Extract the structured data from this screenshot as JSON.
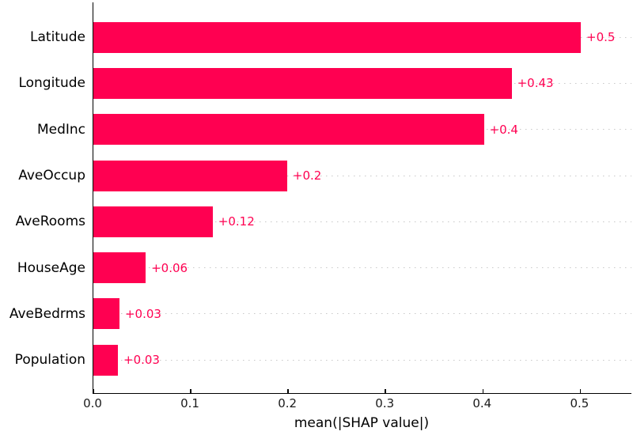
{
  "chart_data": {
    "type": "bar",
    "orientation": "horizontal",
    "title": "",
    "xlabel": "mean(|SHAP value|)",
    "ylabel": "",
    "categories": [
      "Latitude",
      "Longitude",
      "MedInc",
      "AveOccup",
      "AveRooms",
      "HouseAge",
      "AveBedrms",
      "Population"
    ],
    "values": [
      0.5,
      0.43,
      0.4,
      0.2,
      0.12,
      0.06,
      0.03,
      0.03
    ],
    "value_labels": [
      "+0.5",
      "+0.43",
      "+0.4",
      "+0.2",
      "+0.12",
      "+0.06",
      "+0.03",
      "+0.03"
    ],
    "bar_values_precise": [
      0.5005,
      0.4295,
      0.401,
      0.199,
      0.1225,
      0.0537,
      0.0268,
      0.0252
    ],
    "x_ticks": [
      "0.0",
      "0.1",
      "0.2",
      "0.3",
      "0.4",
      "0.5"
    ],
    "x_tick_values": [
      0.0,
      0.1,
      0.2,
      0.3,
      0.4,
      0.5
    ],
    "xlim": [
      0,
      0.5525
    ],
    "grid": "dotted horizontal line at each bar row",
    "legend": "none",
    "colors": {
      "bar": "#ff0051",
      "value_label": "#ff0051",
      "gridline": "#cccccc",
      "axis": "#000000",
      "text": "#000000",
      "background": "#ffffff"
    }
  }
}
